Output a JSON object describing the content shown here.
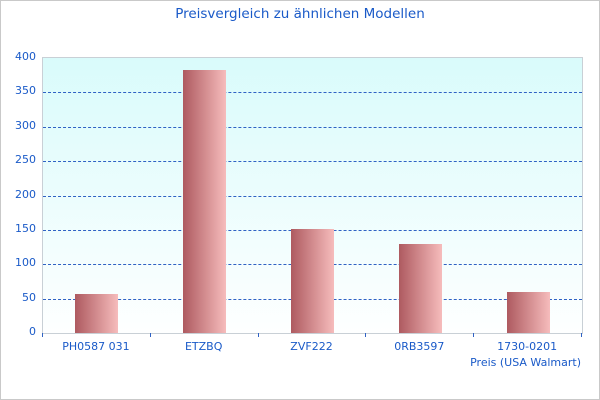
{
  "chart_data": {
    "type": "bar",
    "title": "Preisvergleich zu ähnlichen Modellen",
    "categories": [
      "PH0587 031",
      "ETZBQ",
      "ZVF222",
      "0RB3597",
      "1730-0201"
    ],
    "values": [
      57,
      382,
      152,
      130,
      60
    ],
    "xlabel": "Preis (USA Walmart)",
    "ylabel": "",
    "ylim": [
      0,
      400
    ],
    "yticks": [
      0,
      50,
      100,
      150,
      200,
      250,
      300,
      350,
      400
    ],
    "grid": "horizontal-dashed",
    "legend": "none",
    "colors": {
      "title_text": "#1a5ac8",
      "axis_text": "#1a5ac8",
      "tick_mark": "#2f62c4",
      "gridline": "#2f62c4",
      "plot_border": "#c9d0d6",
      "plot_bg_top": "#d9fbfb",
      "plot_bg_bottom": "#feffff",
      "bar_gradient_left": "#ae5a60",
      "bar_gradient_right": "#f6bcbc",
      "outer_border": "#c9c9c9"
    }
  }
}
